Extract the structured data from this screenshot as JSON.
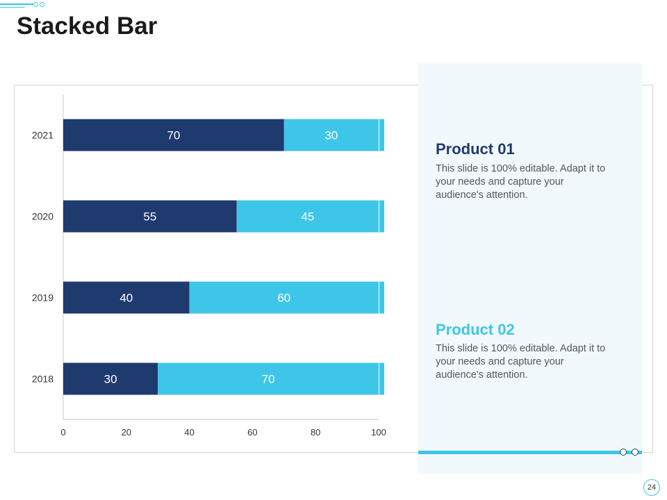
{
  "title": "Stacked Bar",
  "page_number": "24",
  "colors": {
    "product1": "#1f3a6e",
    "product2": "#3ec6e8",
    "accent": "#3bc5e6",
    "panel_bg": "#f1f9fc"
  },
  "products": [
    {
      "title": "Product 01",
      "description": "This slide is 100% editable. Adapt it to your needs and capture your audience's attention."
    },
    {
      "title": "Product 02",
      "description": "This slide is 100% editable. Adapt it to your needs and capture your audience's attention."
    }
  ],
  "chart_data": {
    "type": "bar",
    "orientation": "horizontal",
    "stacked": true,
    "title": "",
    "xlabel": "",
    "ylabel": "",
    "categories": [
      "2021",
      "2020",
      "2019",
      "2018"
    ],
    "series": [
      {
        "name": "Product 01",
        "values": [
          70,
          55,
          40,
          30
        ]
      },
      {
        "name": "Product 02",
        "values": [
          30,
          45,
          60,
          70
        ]
      }
    ],
    "xlim": [
      0,
      100
    ],
    "xticks": [
      0,
      20,
      40,
      60,
      80,
      100
    ],
    "grid": false,
    "legend": "none"
  }
}
